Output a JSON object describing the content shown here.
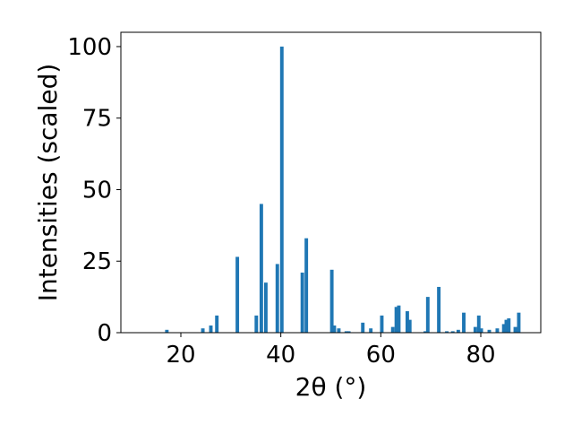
{
  "chart_data": {
    "type": "bar",
    "xlabel": "2θ (°)",
    "ylabel": "Intensities (scaled)",
    "xlim": [
      8,
      92
    ],
    "ylim": [
      0,
      105
    ],
    "xticks": [
      20,
      40,
      60,
      80
    ],
    "yticks": [
      0,
      25,
      50,
      75,
      100
    ],
    "bar_color": "#1f77b4",
    "bar_width": 0.7,
    "grid": false,
    "legend": "none",
    "x": [
      17.2,
      24.4,
      26.0,
      27.2,
      31.3,
      35.1,
      36.1,
      37.0,
      39.3,
      40.2,
      44.3,
      45.1,
      50.2,
      50.7,
      51.6,
      53.1,
      53.6,
      56.4,
      58.0,
      60.2,
      62.4,
      63.1,
      63.6,
      65.3,
      65.8,
      68.9,
      69.4,
      71.6,
      73.2,
      74.4,
      75.5,
      76.6,
      78.9,
      79.6,
      80.1,
      81.7,
      83.3,
      84.6,
      85.1,
      85.6,
      86.9,
      87.6
    ],
    "y": [
      1,
      1.5,
      2.5,
      6,
      26.5,
      6,
      45,
      17.5,
      24,
      100,
      21,
      33,
      22,
      2.5,
      1.5,
      0.5,
      0.5,
      3.5,
      1.5,
      6,
      2,
      9,
      9.5,
      7.5,
      4.5,
      0.5,
      12.5,
      16,
      0.5,
      0.5,
      1,
      7,
      2,
      6,
      1.5,
      1,
      1.5,
      3,
      4.5,
      5,
      2,
      7
    ]
  }
}
